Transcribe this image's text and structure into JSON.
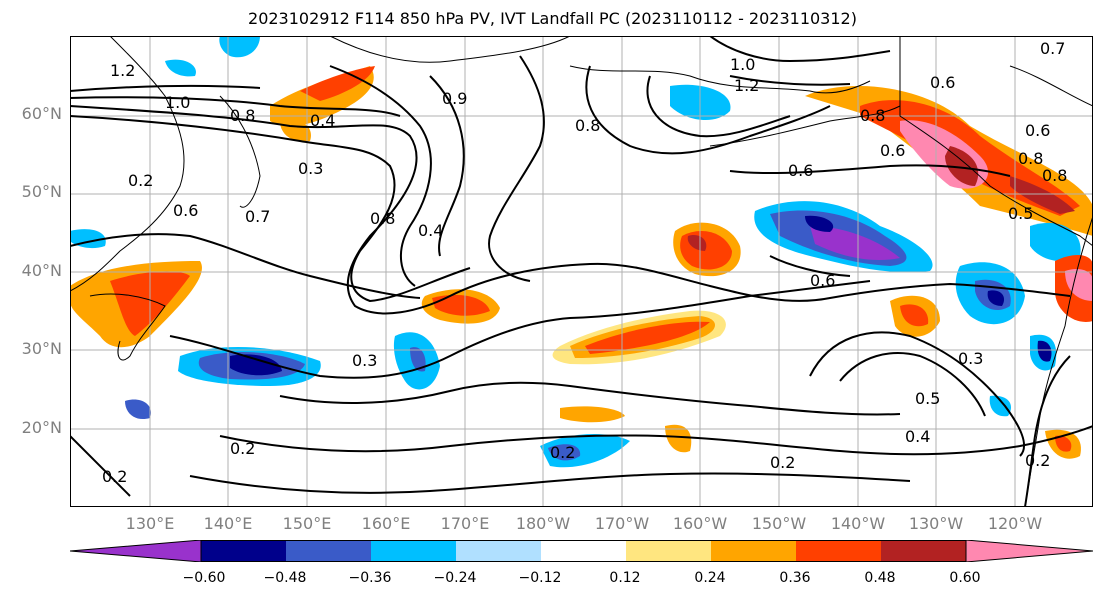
{
  "title": "2023102912 F114 850 hPa PV, IVT Landfall PC (2023110112 - 2023110312)",
  "lat_labels": [
    "60°N",
    "50°N",
    "40°N",
    "30°N",
    "20°N"
  ],
  "lon_labels": [
    "130°E",
    "140°E",
    "150°E",
    "160°E",
    "170°E",
    "180°W",
    "170°W",
    "160°W",
    "150°W",
    "140°W",
    "130°W",
    "120°W"
  ],
  "contour_labels": [
    "1.2",
    "1.0",
    "0.8",
    "0.4",
    "0.3",
    "0.2",
    "0.7",
    "0.6",
    "0.8",
    "0.4",
    "0.9",
    "1.0",
    "1.2",
    "0.6",
    "0.8",
    "0.8",
    "0.6",
    "0.5",
    "0.6",
    "0.3",
    "0.3",
    "0.5",
    "0.4",
    "0.2",
    "0.2",
    "0.2",
    "0.2",
    "0.2",
    "0.7",
    "0.6",
    "0.6",
    "0.8",
    "0.8"
  ],
  "colorbar": {
    "ticks": [
      "−0.60",
      "−0.48",
      "−0.36",
      "−0.24",
      "−0.12",
      "0.12",
      "0.24",
      "0.36",
      "0.48",
      "0.60"
    ],
    "colors": [
      "#9932CC",
      "#00008B",
      "#3A5BC8",
      "#00BFFF",
      "#B0E0FF",
      "#FFFFFF",
      "#FFE680",
      "#FFA500",
      "#FF4000",
      "#B22222",
      "#FF88B0"
    ]
  }
}
